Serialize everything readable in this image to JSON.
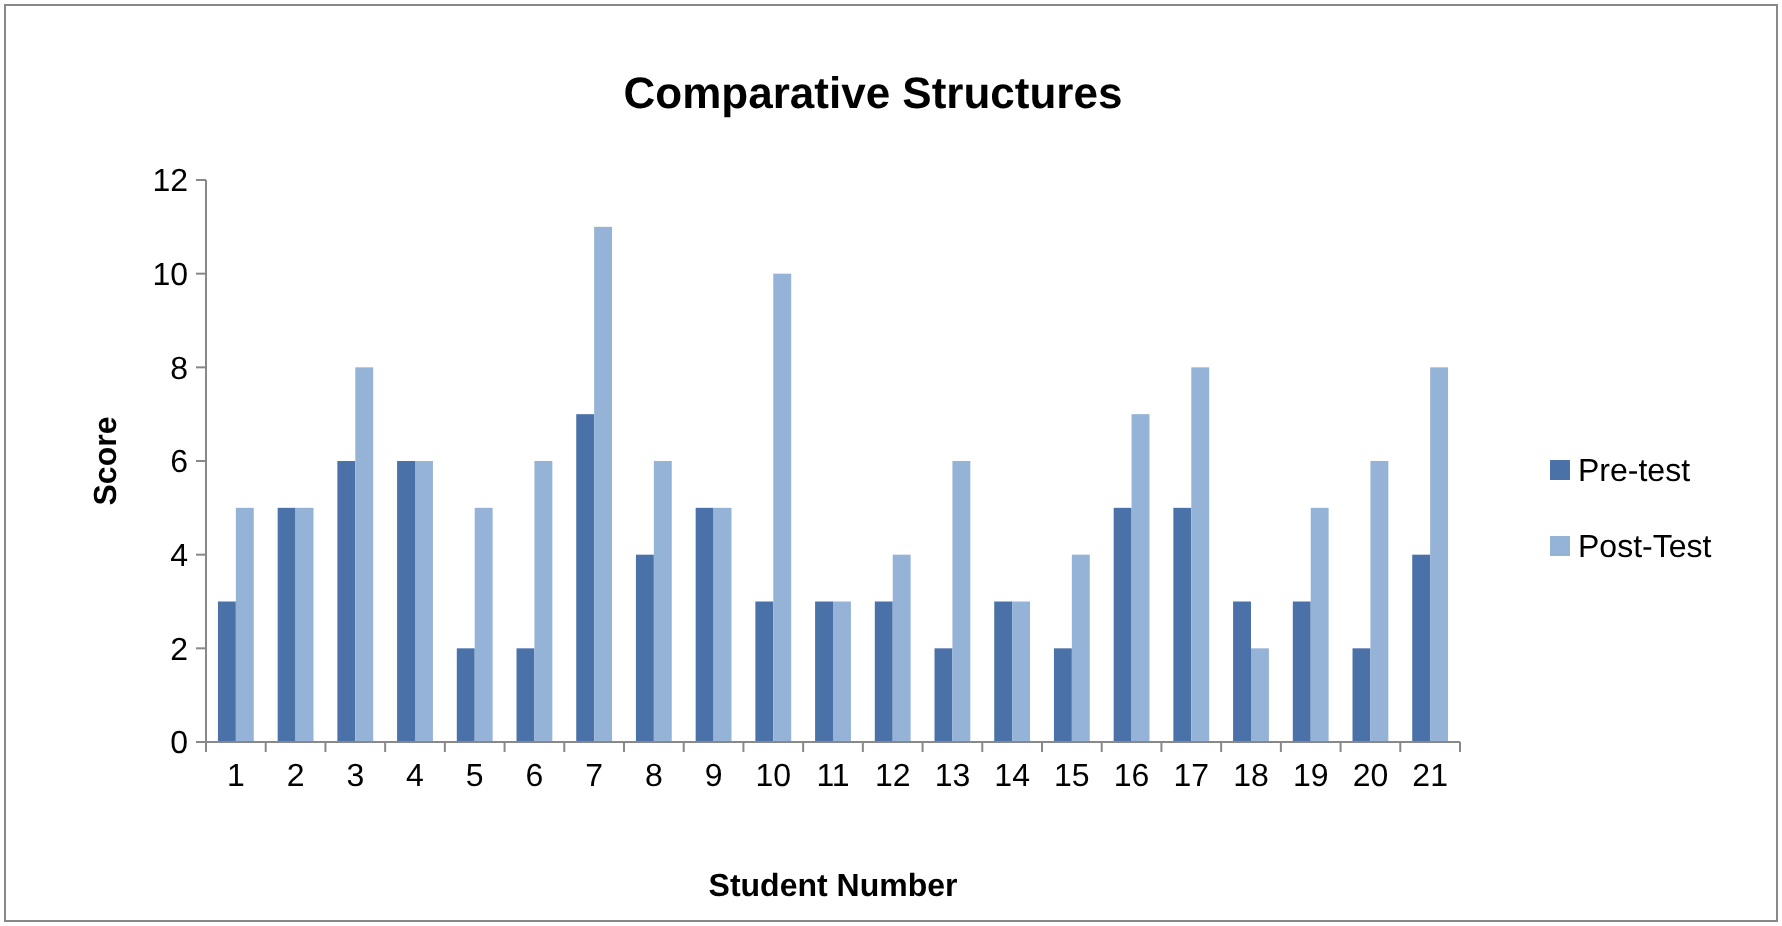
{
  "chart_data": {
    "type": "bar",
    "title": "Comparative Structures",
    "xlabel": "Student Number",
    "ylabel": "Score",
    "categories": [
      "1",
      "2",
      "3",
      "4",
      "5",
      "6",
      "7",
      "8",
      "9",
      "10",
      "11",
      "12",
      "13",
      "14",
      "15",
      "16",
      "17",
      "18",
      "19",
      "20",
      "21"
    ],
    "series": [
      {
        "name": "Pre-test",
        "color": "#4a72a8",
        "values": [
          3,
          5,
          6,
          6,
          2,
          2,
          7,
          4,
          5,
          3,
          3,
          3,
          2,
          3,
          2,
          5,
          5,
          3,
          3,
          2,
          4
        ]
      },
      {
        "name": "Post-Test",
        "color": "#95b3d7",
        "values": [
          5,
          5,
          8,
          6,
          5,
          6,
          11,
          6,
          5,
          10,
          3,
          4,
          6,
          3,
          4,
          7,
          8,
          2,
          5,
          6,
          8
        ]
      }
    ],
    "ylim": [
      0,
      12
    ],
    "yticks": [
      0,
      2,
      4,
      6,
      8,
      10,
      12
    ],
    "grid": false,
    "legend": "right"
  }
}
